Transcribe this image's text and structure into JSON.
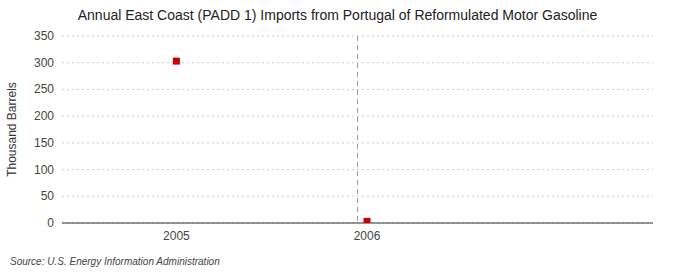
{
  "chart_data": {
    "type": "scatter",
    "title": "Annual East Coast (PADD 1) Imports from Portugal of Reformulated Motor Gasoline",
    "ylabel": "Thousand Barrels",
    "annotations": [
      "Source: U.S. Energy Information Administration"
    ],
    "x": [
      2005,
      2006
    ],
    "values": [
      303,
      3
    ],
    "color": "#cc0000",
    "marker": "square",
    "vline_x": 2005.95,
    "xlim": [
      2004.4,
      2007.5
    ],
    "xticks": [
      2005,
      2006
    ],
    "ylim": [
      0,
      350
    ],
    "yticks": [
      0,
      50,
      100,
      150,
      200,
      250,
      300,
      350
    ],
    "grid": true
  }
}
